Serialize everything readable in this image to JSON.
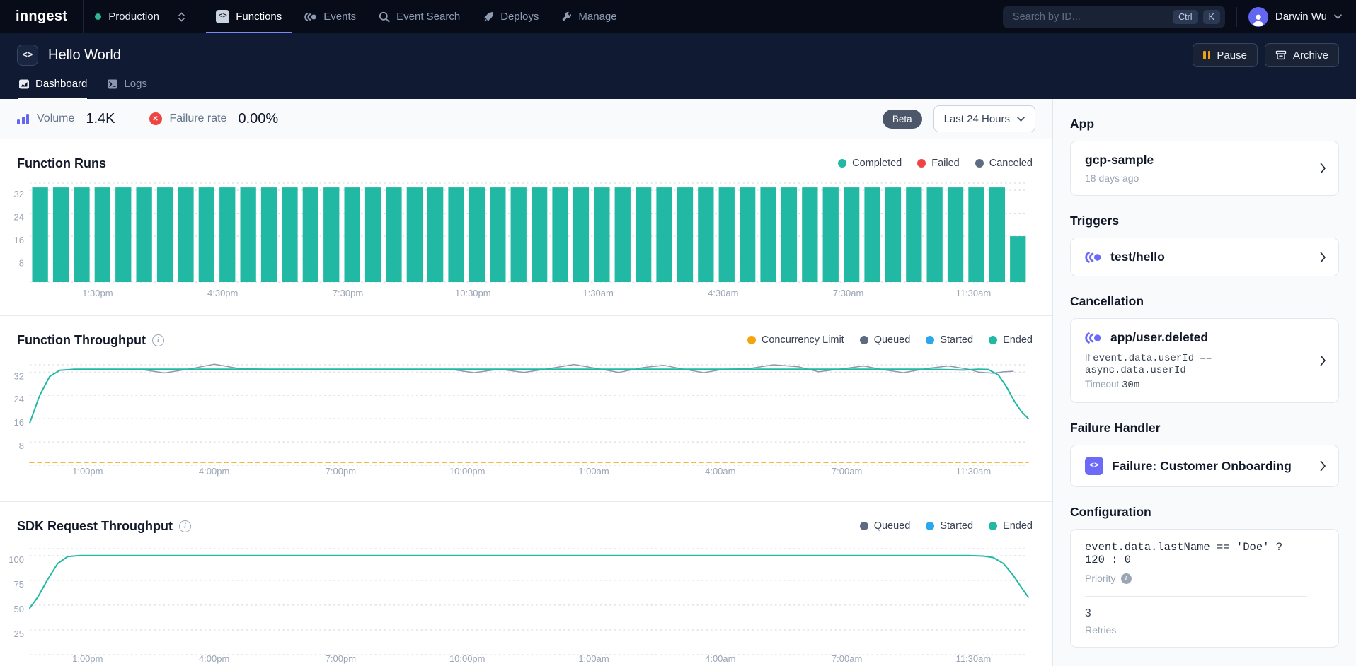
{
  "topnav": {
    "logo": "inngest",
    "environment": "Production",
    "tabs": [
      {
        "label": "Functions",
        "active": true
      },
      {
        "label": "Events",
        "active": false
      },
      {
        "label": "Event Search",
        "active": false
      },
      {
        "label": "Deploys",
        "active": false
      },
      {
        "label": "Manage",
        "active": false
      }
    ],
    "search": {
      "placeholder": "Search by ID...",
      "keys": [
        "Ctrl",
        "K"
      ]
    },
    "user": {
      "name": "Darwin Wu"
    }
  },
  "header": {
    "title": "Hello World",
    "tabs": [
      {
        "label": "Dashboard",
        "active": true
      },
      {
        "label": "Logs",
        "active": false
      }
    ],
    "actions": {
      "pause": "Pause",
      "archive": "Archive"
    }
  },
  "stats": {
    "volume_label": "Volume",
    "volume_value": "1.4K",
    "failure_label": "Failure rate",
    "failure_value": "0.00%",
    "beta_label": "Beta",
    "time_range": "Last 24 Hours"
  },
  "colors": {
    "teal": "#21b9a4",
    "red": "#ef4444",
    "slate": "#5d6b82",
    "amber": "#f5a50b",
    "blue": "#2ba7ef",
    "purple": "#6c6af6",
    "indigo": "#6366f1",
    "nav_accent": "#7d88f4"
  },
  "chart_data": [
    {
      "type": "bar",
      "title": "Function Runs",
      "legend": [
        {
          "label": "Completed",
          "color": "#21b9a4"
        },
        {
          "label": "Failed",
          "color": "#ef4444"
        },
        {
          "label": "Canceled",
          "color": "#5d6b82"
        }
      ],
      "x_tick_labels": [
        "1:30pm",
        "4:30pm",
        "7:30pm",
        "10:30pm",
        "1:30am",
        "4:30am",
        "7:30am",
        "11:30am"
      ],
      "yticks": [
        8,
        16,
        24,
        32
      ],
      "ylim": [
        0,
        34.5
      ],
      "grid": true,
      "legend_position": "top-right",
      "bar_color": "#21b9a4",
      "values": [
        33,
        33,
        33,
        33,
        33,
        33,
        33,
        33,
        33,
        33,
        33,
        33,
        33,
        33,
        33,
        33,
        33,
        33,
        33,
        33,
        33,
        33,
        33,
        33,
        33,
        33,
        33,
        33,
        33,
        33,
        33,
        33,
        33,
        33,
        33,
        33,
        33,
        33,
        33,
        33,
        33,
        33,
        33,
        33,
        33,
        33,
        33,
        16
      ]
    },
    {
      "type": "line",
      "title": "Function Throughput",
      "legend": [
        {
          "label": "Concurrency Limit",
          "color": "#f5a50b"
        },
        {
          "label": "Queued",
          "color": "#5d6b82"
        },
        {
          "label": "Started",
          "color": "#2ba7ef"
        },
        {
          "label": "Ended",
          "color": "#21b9a4"
        }
      ],
      "x_tick_labels": [
        "1:00pm",
        "4:00pm",
        "7:00pm",
        "10:00pm",
        "1:00am",
        "4:00am",
        "7:00am",
        "11:30am"
      ],
      "yticks": [
        8,
        16,
        24,
        32
      ],
      "ylim": [
        0,
        34.5
      ],
      "grid": true,
      "legend_position": "top-right",
      "series": [
        {
          "name": "Concurrency Limit",
          "color": "#f5b63f",
          "width": 1.5,
          "dashed": true,
          "points": [
            [
              0,
              0.9
            ],
            [
              1,
              0.9
            ]
          ]
        },
        {
          "name": "Queued",
          "color": "#8e99ab",
          "width": 1.5,
          "dashed": false,
          "points": [
            [
              0.045,
              33
            ],
            [
              0.11,
              33
            ],
            [
              0.135,
              31.7
            ],
            [
              0.16,
              33.1
            ],
            [
              0.185,
              34.7
            ],
            [
              0.21,
              33.2
            ],
            [
              0.24,
              33
            ],
            [
              0.42,
              33
            ],
            [
              0.445,
              31.8
            ],
            [
              0.47,
              33
            ],
            [
              0.495,
              31.9
            ],
            [
              0.52,
              33.2
            ],
            [
              0.545,
              34.6
            ],
            [
              0.57,
              33.1
            ],
            [
              0.59,
              31.9
            ],
            [
              0.615,
              33.6
            ],
            [
              0.635,
              34.3
            ],
            [
              0.655,
              33
            ],
            [
              0.675,
              31.8
            ],
            [
              0.695,
              33
            ],
            [
              0.72,
              33.2
            ],
            [
              0.745,
              34.5
            ],
            [
              0.77,
              33.8
            ],
            [
              0.79,
              32.1
            ],
            [
              0.815,
              33.2
            ],
            [
              0.835,
              34.1
            ],
            [
              0.855,
              32.8
            ],
            [
              0.875,
              31.8
            ],
            [
              0.9,
              33.3
            ],
            [
              0.92,
              34.1
            ],
            [
              0.94,
              33
            ],
            [
              0.95,
              32
            ],
            [
              0.965,
              31.6
            ],
            [
              0.975,
              32.1
            ],
            [
              0.985,
              32.3
            ]
          ]
        },
        {
          "name": "Ended",
          "color": "#21b9a4",
          "width": 2,
          "dashed": false,
          "points": [
            [
              0,
              14.5
            ],
            [
              0.01,
              24
            ],
            [
              0.02,
              30.5
            ],
            [
              0.03,
              32.6
            ],
            [
              0.045,
              33
            ],
            [
              0.3,
              33
            ],
            [
              0.6,
              33
            ],
            [
              0.9,
              33
            ],
            [
              0.935,
              32.7
            ],
            [
              0.95,
              33
            ],
            [
              0.96,
              32.9
            ],
            [
              0.97,
              31
            ],
            [
              0.978,
              27
            ],
            [
              0.986,
              22
            ],
            [
              0.993,
              18.5
            ],
            [
              1,
              16
            ]
          ]
        }
      ]
    },
    {
      "type": "line",
      "title": "SDK Request Throughput",
      "legend": [
        {
          "label": "Queued",
          "color": "#5d6b82"
        },
        {
          "label": "Started",
          "color": "#2ba7ef"
        },
        {
          "label": "Ended",
          "color": "#21b9a4"
        }
      ],
      "x_tick_labels": [
        "1:00pm",
        "4:00pm",
        "7:00pm",
        "10:00pm",
        "1:00am",
        "4:00am",
        "7:00am",
        "11:30am"
      ],
      "yticks": [
        25,
        50,
        75,
        100
      ],
      "ylim": [
        0,
        107
      ],
      "grid": true,
      "legend_position": "top-right",
      "series": [
        {
          "name": "Ended",
          "color": "#21b9a4",
          "width": 2,
          "dashed": false,
          "points": [
            [
              0,
              47
            ],
            [
              0.008,
              58
            ],
            [
              0.018,
              76
            ],
            [
              0.028,
              92
            ],
            [
              0.038,
              99
            ],
            [
              0.05,
              100
            ],
            [
              0.3,
              100
            ],
            [
              0.6,
              100
            ],
            [
              0.9,
              100
            ],
            [
              0.94,
              100
            ],
            [
              0.955,
              99.5
            ],
            [
              0.965,
              98
            ],
            [
              0.975,
              92
            ],
            [
              0.985,
              80
            ],
            [
              0.993,
              68
            ],
            [
              1,
              58
            ]
          ]
        }
      ]
    }
  ],
  "sidebar": {
    "app": {
      "heading": "App",
      "name": "gcp-sample",
      "age": "18 days ago"
    },
    "triggers": {
      "heading": "Triggers",
      "event": "test/hello"
    },
    "cancellation": {
      "heading": "Cancellation",
      "event": "app/user.deleted",
      "if_label": "If",
      "expression": "event.data.userId == async.data.userId",
      "timeout_label": "Timeout",
      "timeout_value": "30m"
    },
    "failure_handler": {
      "heading": "Failure Handler",
      "name": "Failure: Customer Onboarding"
    },
    "configuration": {
      "heading": "Configuration",
      "priority_expression": "event.data.lastName == 'Doe' ? 120 : 0",
      "priority_label": "Priority",
      "retries_value": "3",
      "retries_label": "Retries"
    }
  }
}
